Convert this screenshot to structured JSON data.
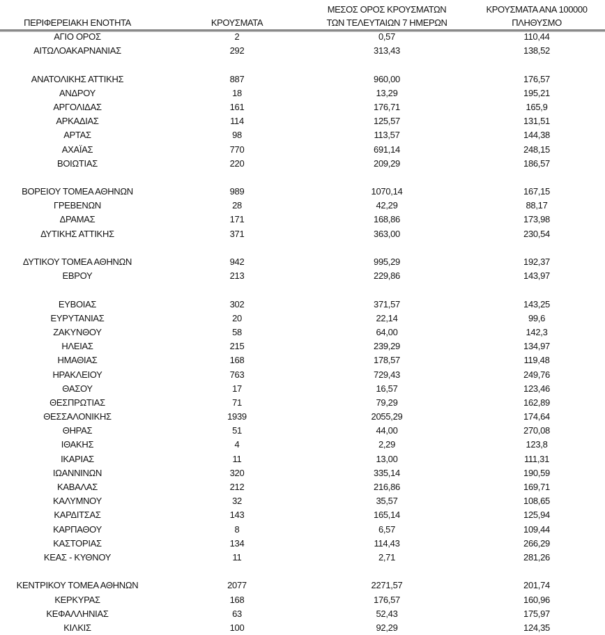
{
  "table": {
    "headers": {
      "region": "ΠΕΡΙΦΕΡΕΙΑΚΗ ΕΝΟΤΗΤΑ",
      "cases": "ΚΡΟΥΣΜΑΤΑ",
      "avg_line1": "ΜΕΣΟΣ ΟΡΟΣ ΚΡΟΥΣΜΑΤΩΝ",
      "avg_line2": "ΤΩΝ ΤΕΛΕΥΤΑΙΩΝ 7 ΗΜΕΡΩΝ",
      "per100k_line1": "ΚΡΟΥΣΜΑΤΑ ΑΝΑ 100000",
      "per100k_line2": "ΠΛΗΘΥΣΜΟ"
    },
    "groups": [
      [
        [
          "ΑΓΙΟ ΟΡΟΣ",
          "2",
          "0,57",
          "110,44"
        ],
        [
          "ΑΙΤΩΛΟΑΚΑΡΝΑΝΙΑΣ",
          "292",
          "313,43",
          "138,52"
        ]
      ],
      [
        [
          "ΑΝΑΤΟΛΙΚΗΣ ΑΤΤΙΚΗΣ",
          "887",
          "960,00",
          "176,57"
        ],
        [
          "ΑΝΔΡΟΥ",
          "18",
          "13,29",
          "195,21"
        ],
        [
          "ΑΡΓΟΛΙΔΑΣ",
          "161",
          "176,71",
          "165,9"
        ],
        [
          "ΑΡΚΑΔΙΑΣ",
          "114",
          "125,57",
          "131,51"
        ],
        [
          "ΑΡΤΑΣ",
          "98",
          "113,57",
          "144,38"
        ],
        [
          "ΑΧΑΪΑΣ",
          "770",
          "691,14",
          "248,15"
        ],
        [
          "ΒΟΙΩΤΙΑΣ",
          "220",
          "209,29",
          "186,57"
        ]
      ],
      [
        [
          "ΒΟΡΕΙΟΥ ΤΟΜΕΑ ΑΘΗΝΩΝ",
          "989",
          "1070,14",
          "167,15"
        ],
        [
          "ΓΡΕΒΕΝΩΝ",
          "28",
          "42,29",
          "88,17"
        ],
        [
          "ΔΡΑΜΑΣ",
          "171",
          "168,86",
          "173,98"
        ],
        [
          "ΔΥΤΙΚΗΣ ΑΤΤΙΚΗΣ",
          "371",
          "363,00",
          "230,54"
        ]
      ],
      [
        [
          "ΔΥΤΙΚΟΥ ΤΟΜΕΑ ΑΘΗΝΩΝ",
          "942",
          "995,29",
          "192,37"
        ],
        [
          "ΕΒΡΟΥ",
          "213",
          "229,86",
          "143,97"
        ]
      ],
      [
        [
          "ΕΥΒΟΙΑΣ",
          "302",
          "371,57",
          "143,25"
        ],
        [
          "ΕΥΡΥΤΑΝΙΑΣ",
          "20",
          "22,14",
          "99,6"
        ],
        [
          "ΖΑΚΥΝΘΟΥ",
          "58",
          "64,00",
          "142,3"
        ],
        [
          "ΗΛΕΙΑΣ",
          "215",
          "239,29",
          "134,97"
        ],
        [
          "ΗΜΑΘΙΑΣ",
          "168",
          "178,57",
          "119,48"
        ],
        [
          "ΗΡΑΚΛΕΙΟΥ",
          "763",
          "729,43",
          "249,76"
        ],
        [
          "ΘΑΣΟΥ",
          "17",
          "16,57",
          "123,46"
        ],
        [
          "ΘΕΣΠΡΩΤΙΑΣ",
          "71",
          "79,29",
          "162,89"
        ],
        [
          "ΘΕΣΣΑΛΟΝΙΚΗΣ",
          "1939",
          "2055,29",
          "174,64"
        ],
        [
          "ΘΗΡΑΣ",
          "51",
          "44,00",
          "270,08"
        ],
        [
          "ΙΘΑΚΗΣ",
          "4",
          "2,29",
          "123,8"
        ],
        [
          "ΙΚΑΡΙΑΣ",
          "11",
          "13,00",
          "111,31"
        ],
        [
          "ΙΩΑΝΝΙΝΩΝ",
          "320",
          "335,14",
          "190,59"
        ],
        [
          "ΚΑΒΑΛΑΣ",
          "212",
          "216,86",
          "169,71"
        ],
        [
          "ΚΑΛΥΜΝΟΥ",
          "32",
          "35,57",
          "108,65"
        ],
        [
          "ΚΑΡΔΙΤΣΑΣ",
          "143",
          "165,14",
          "125,94"
        ],
        [
          "ΚΑΡΠΑΘΟΥ",
          "8",
          "6,57",
          "109,44"
        ],
        [
          "ΚΑΣΤΟΡΙΑΣ",
          "134",
          "114,43",
          "266,29"
        ],
        [
          "ΚΕΑΣ - ΚΥΘΝΟΥ",
          "11",
          "2,71",
          "281,26"
        ]
      ],
      [
        [
          "ΚΕΝΤΡΙΚΟΥ ΤΟΜΕΑ ΑΘΗΝΩΝ",
          "2077",
          "2271,57",
          "201,74"
        ],
        [
          "ΚΕΡΚΥΡΑΣ",
          "168",
          "176,57",
          "160,96"
        ],
        [
          "ΚΕΦΑΛΛΗΝΙΑΣ",
          "63",
          "52,43",
          "175,97"
        ],
        [
          "ΚΙΛΚΙΣ",
          "100",
          "92,29",
          "124,35"
        ]
      ]
    ]
  }
}
